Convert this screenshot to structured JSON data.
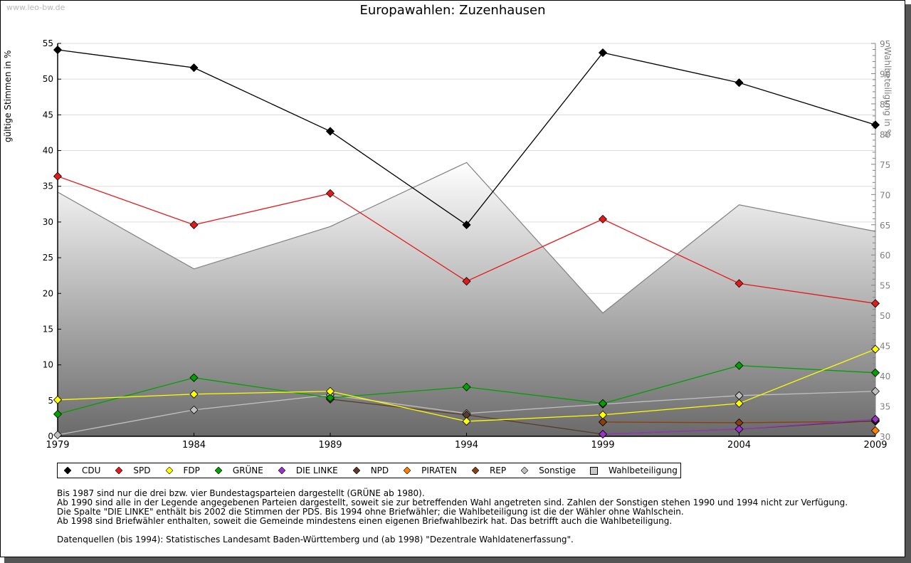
{
  "watermark": "www.leo-bw.de",
  "chart_data": {
    "type": "line",
    "title": "Europawahlen: Zuzenhausen",
    "xlabel": "",
    "ylabel": "gültige Stimmen in %",
    "ylabel_right": "Wahlbeteiligung in %",
    "x": [
      "1979",
      "1984",
      "1989",
      "1994",
      "1999",
      "2004",
      "2009"
    ],
    "ylim": [
      0,
      55
    ],
    "ylim_right": [
      30,
      95
    ],
    "yticks": [
      "0",
      "5",
      "10",
      "15",
      "20",
      "25",
      "30",
      "35",
      "40",
      "45",
      "50",
      "55"
    ],
    "yticks_right": [
      "30",
      "35",
      "40",
      "45",
      "50",
      "55",
      "60",
      "65",
      "70",
      "75",
      "80",
      "85",
      "90",
      "95"
    ],
    "grid": true,
    "legend_position": "bottom",
    "series": [
      {
        "name": "CDU",
        "color": "#000000",
        "values": [
          54.1,
          51.6,
          42.7,
          29.6,
          53.7,
          49.5,
          43.6
        ]
      },
      {
        "name": "SPD",
        "color": "#e31a1c",
        "values": [
          36.4,
          29.6,
          34.0,
          21.7,
          30.4,
          21.4,
          18.6
        ]
      },
      {
        "name": "FDP",
        "color": "#ffff00",
        "values": [
          5.1,
          5.9,
          6.3,
          2.1,
          3.0,
          4.6,
          12.2
        ]
      },
      {
        "name": "GRÜNE",
        "color": "#00a000",
        "values": [
          3.1,
          8.2,
          5.4,
          6.9,
          4.6,
          9.9,
          8.9
        ]
      },
      {
        "name": "DIE LINKE",
        "color": "#9933cc",
        "values": [
          null,
          null,
          null,
          null,
          0.3,
          1.0,
          2.4
        ]
      },
      {
        "name": "NPD",
        "color": "#5a3a28",
        "values": [
          null,
          null,
          5.2,
          3.0,
          0.3,
          1.0,
          2.2
        ]
      },
      {
        "name": "PIRATEN",
        "color": "#ff8000",
        "values": [
          null,
          null,
          null,
          null,
          null,
          null,
          0.8
        ]
      },
      {
        "name": "REP",
        "color": "#8b3e0e",
        "values": [
          null,
          null,
          null,
          null,
          2.0,
          1.9,
          2.1
        ]
      },
      {
        "name": "Sonstige",
        "color": "#c0c0c0",
        "values": [
          0.2,
          3.7,
          5.8,
          3.2,
          4.5,
          5.7,
          6.3
        ]
      },
      {
        "name": "Wahlbeteiligung",
        "color": "#808080",
        "axis": "right",
        "type": "area",
        "values": [
          70.4,
          57.7,
          64.7,
          75.3,
          50.4,
          68.3,
          63.9
        ]
      }
    ]
  },
  "legend": [
    {
      "label": "CDU",
      "color": "#000000",
      "shape": "diamond"
    },
    {
      "label": "SPD",
      "color": "#e31a1c",
      "shape": "diamond"
    },
    {
      "label": "FDP",
      "color": "#ffff00",
      "shape": "diamond"
    },
    {
      "label": "GRÜNE",
      "color": "#00a000",
      "shape": "diamond"
    },
    {
      "label": "DIE LINKE",
      "color": "#9933cc",
      "shape": "diamond"
    },
    {
      "label": "NPD",
      "color": "#5a3a28",
      "shape": "diamond"
    },
    {
      "label": "PIRATEN",
      "color": "#ff8000",
      "shape": "diamond"
    },
    {
      "label": "REP",
      "color": "#8b3e0e",
      "shape": "diamond"
    },
    {
      "label": "Sonstige",
      "color": "#c0c0c0",
      "shape": "diamond"
    },
    {
      "label": "Wahlbeteiligung",
      "color": "#a0a0a0",
      "shape": "square"
    }
  ],
  "notes": [
    "Bis 1987 sind nur die drei bzw. vier Bundestagsparteien dargestellt (GRÜNE ab 1980).",
    "Ab 1990 sind alle in der Legende angegebenen Parteien dargestellt, soweit sie zur betreffenden Wahl angetreten sind. Zahlen der Sonstigen stehen 1990 und 1994 nicht zur Verfügung.",
    "Die Spalte \"DIE LINKE\" enthält bis 2002 die Stimmen der PDS. Bis 1994 ohne Briefwähler; die Wahlbeteiligung ist die der Wähler ohne Wahlschein.",
    "Ab 1998 sind Briefwähler enthalten, soweit die Gemeinde mindestens einen eigenen Briefwahlbezirk hat. Das betrifft auch die Wahlbeteiligung."
  ],
  "source": "Datenquellen (bis 1994): Statistisches Landesamt Baden-Württemberg und (ab 1998) \"Dezentrale Wahldatenerfassung\"."
}
